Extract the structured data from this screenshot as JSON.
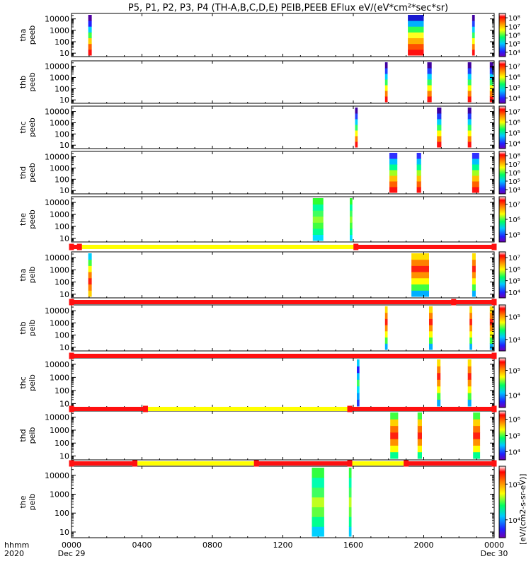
{
  "chart_data": {
    "type": "heatmap",
    "title": "P5, P1, P2, P3, P4 (TH-A,B,C,D,E) PEIB,PEEB EFlux eV/(eV*cm²*sec*sr)",
    "x_tick_labels": [
      "0000",
      "0400",
      "0800",
      "1200",
      "1600",
      "2000",
      "0000"
    ],
    "x_range_hours": [
      0,
      24
    ],
    "x_tick_hours": [
      0,
      4,
      8,
      12,
      16,
      20,
      24
    ],
    "date_labels": [
      {
        "text": "Dec 29",
        "hour": 0
      },
      {
        "text": "Dec 30",
        "hour": 24
      }
    ],
    "x_axis_row_labels": [
      "hhmm",
      "2020"
    ],
    "y_scale": "log",
    "y_range": [
      5,
      30000
    ],
    "y_tick_labels": [
      "10",
      "100",
      "1000",
      "10000"
    ],
    "y_tick_values": [
      10,
      100,
      1000,
      10000
    ],
    "colorbar_unit_label": "[eV/(cm2-s-sr-eV)]",
    "panels": [
      {
        "label": [
          "tha",
          "peeb"
        ],
        "bursts": [
          [
            0.95,
            1.15,
            "e_high"
          ],
          [
            19.1,
            20.0,
            "dense"
          ],
          [
            22.75,
            22.9,
            "narrow"
          ]
        ],
        "cbar_ticks": [
          "10⁴",
          "10⁵",
          "10⁶",
          "10⁷",
          "10⁸"
        ]
      },
      {
        "label": [
          "thb",
          "peeb"
        ],
        "bursts": [
          [
            17.8,
            17.95,
            "narrow"
          ],
          [
            20.2,
            20.45,
            "narrow"
          ],
          [
            22.5,
            22.7,
            "narrow"
          ],
          [
            23.75,
            23.95,
            "narrow"
          ]
        ],
        "cbar_ticks": [
          "10⁴",
          "10⁵",
          "10⁶",
          "10⁷"
        ]
      },
      {
        "label": [
          "thc",
          "peeb"
        ],
        "bursts": [
          [
            16.1,
            16.25,
            "narrow"
          ],
          [
            20.75,
            21.0,
            "narrow"
          ],
          [
            22.5,
            22.7,
            "narrow"
          ]
        ],
        "cbar_ticks": [
          "10⁴",
          "10⁵",
          "10⁶",
          "10⁷"
        ]
      },
      {
        "label": [
          "thd",
          "peeb"
        ],
        "bursts": [
          [
            18.05,
            18.5,
            "wide"
          ],
          [
            19.6,
            19.85,
            "wide"
          ],
          [
            22.75,
            23.15,
            "wide"
          ]
        ],
        "cbar_ticks": [
          "10⁴",
          "10⁵",
          "10⁶",
          "10⁷",
          "10⁸"
        ]
      },
      {
        "label": [
          "the",
          "peeb"
        ],
        "bursts": [
          [
            13.7,
            14.3,
            "green"
          ],
          [
            15.8,
            15.95,
            "green"
          ]
        ],
        "cbar_ticks": [
          "10⁵",
          "10⁶",
          "10⁷"
        ]
      },
      {
        "label": [
          "tha",
          "peib"
        ],
        "bursts": [
          [
            0.95,
            1.15,
            "ion_edge"
          ],
          [
            19.3,
            20.3,
            "ion"
          ],
          [
            22.75,
            22.95,
            "ion"
          ]
        ],
        "cbar_ticks": [
          "10⁴",
          "10⁵",
          "10⁶",
          "10⁷"
        ]
      },
      {
        "label": [
          "thb",
          "peib"
        ],
        "bursts": [
          [
            17.8,
            17.95,
            "ion"
          ],
          [
            20.3,
            20.5,
            "ion"
          ],
          [
            22.6,
            22.75,
            "ion"
          ],
          [
            23.75,
            23.95,
            "ion"
          ]
        ],
        "cbar_ticks": [
          "10⁴",
          "10⁵"
        ]
      },
      {
        "label": [
          "thc",
          "peib"
        ],
        "bursts": [
          [
            16.2,
            16.35,
            "ion_blue"
          ],
          [
            20.75,
            20.95,
            "ion"
          ],
          [
            22.5,
            22.7,
            "ion"
          ]
        ],
        "cbar_ticks": [
          "10⁴",
          "10⁵"
        ]
      },
      {
        "label": [
          "thd",
          "peib"
        ],
        "bursts": [
          [
            18.1,
            18.55,
            "ion_wide"
          ],
          [
            19.65,
            19.9,
            "ion_wide"
          ],
          [
            22.8,
            23.2,
            "ion_wide"
          ]
        ],
        "cbar_ticks": [
          "10⁴",
          "10⁵",
          "10⁶"
        ]
      },
      {
        "label": [
          "the",
          "peib"
        ],
        "bursts": [
          [
            13.65,
            14.35,
            "ion_green"
          ],
          [
            15.75,
            15.9,
            "ion_green"
          ]
        ],
        "cbar_ticks": [
          "10⁴",
          "10⁵"
        ]
      }
    ],
    "mode_bars": [
      {
        "after_panel": 4,
        "segments": [
          [
            0,
            0.45,
            "red"
          ],
          [
            0.45,
            16.15,
            "yellow"
          ],
          [
            16.15,
            24,
            "red"
          ]
        ],
        "markers": [
          0,
          0.45,
          16.15,
          24
        ]
      },
      {
        "after_panel": 5,
        "segments": [
          [
            0,
            24,
            "red"
          ]
        ],
        "markers": [
          0,
          21.7,
          24
        ]
      },
      {
        "after_panel": 6,
        "segments": [
          [
            0,
            24,
            "red"
          ]
        ],
        "markers": [
          0,
          24
        ]
      },
      {
        "after_panel": 7,
        "segments": [
          [
            0,
            4.2,
            "red"
          ],
          [
            4.2,
            15.8,
            "yellow"
          ],
          [
            15.8,
            24,
            "red"
          ]
        ],
        "markers": [
          0,
          4.2,
          15.8,
          24
        ]
      },
      {
        "after_panel": 8,
        "segments": [
          [
            0,
            3.6,
            "red"
          ],
          [
            3.6,
            10.5,
            "yellow"
          ],
          [
            10.5,
            15.8,
            "red"
          ],
          [
            15.8,
            19.0,
            "yellow"
          ],
          [
            19.0,
            24,
            "red"
          ]
        ],
        "markers": [
          0,
          3.6,
          10.5,
          15.8,
          19.0,
          24
        ]
      }
    ],
    "colors": {
      "red": "#ff1010",
      "yellow": "#ffff00",
      "axis": "#000000"
    },
    "grid": false,
    "legend": "none"
  }
}
